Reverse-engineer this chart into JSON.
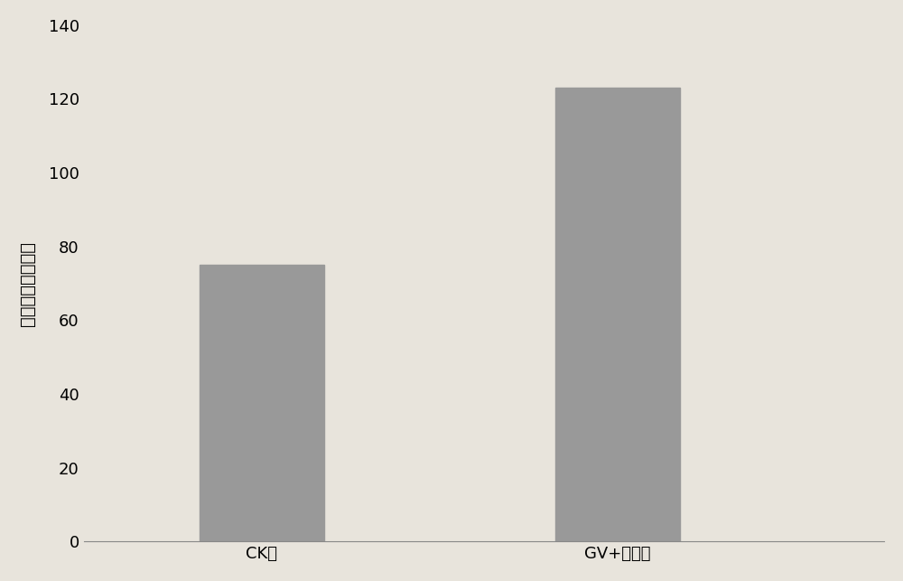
{
  "categories": [
    "CK组",
    "GV+酒槟渣"
  ],
  "values": [
    75,
    123
  ],
  "bar_color": "#999999",
  "bar_width": 0.35,
  "ylabel": "平均单株根部重量",
  "ylim": [
    0,
    140
  ],
  "yticks": [
    0,
    20,
    40,
    60,
    80,
    100,
    120,
    140
  ],
  "background_color": "#e8e4dc",
  "ylabel_fontsize": 14,
  "tick_fontsize": 13,
  "xlabel_fontsize": 13
}
